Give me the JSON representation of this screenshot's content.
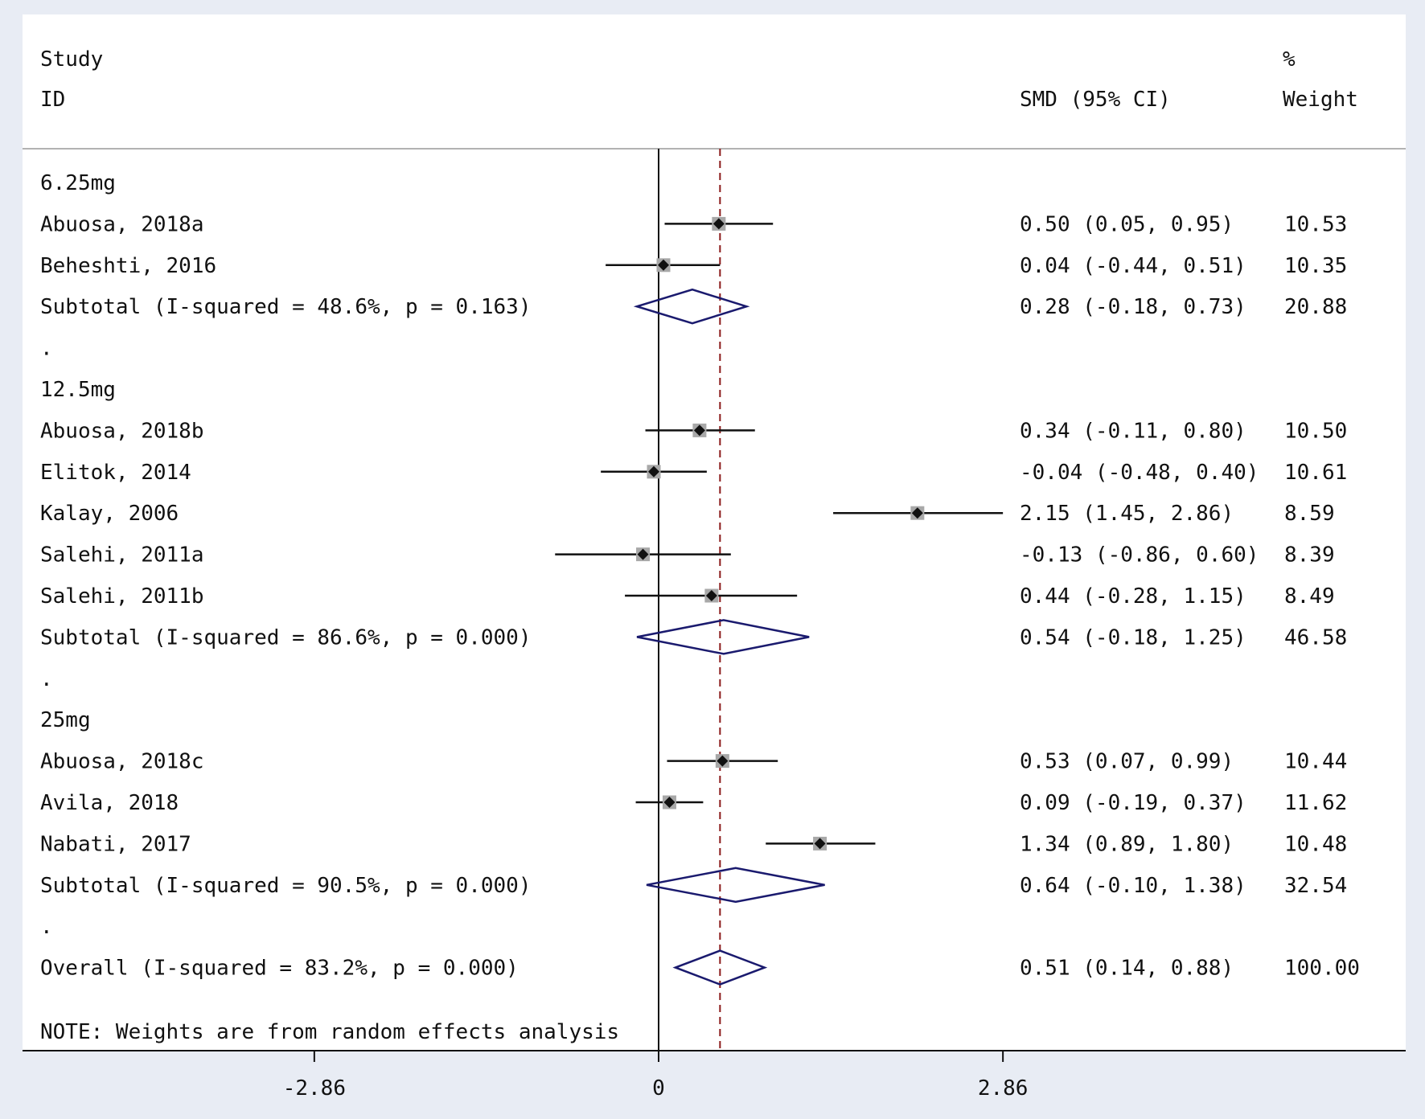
{
  "header": {
    "col_study_line1": "Study",
    "col_study_line2": "ID",
    "col_smd": "SMD (95% CI)",
    "col_weight_line1": "%",
    "col_weight_line2": "Weight"
  },
  "footnote": "NOTE: Weights are from random effects analysis",
  "colors": {
    "background": "#e8ecf4",
    "panel": "#ffffff",
    "diamond": "#1a1a6e",
    "box": "#a8a8a8",
    "reference_line": "#8b1a1a",
    "ink": "#111111"
  },
  "chart_data": {
    "type": "forest",
    "measure": "SMD",
    "x_ticks": [
      {
        "value": -2.86,
        "label": "-2.86"
      },
      {
        "value": 0,
        "label": "0"
      },
      {
        "value": 2.86,
        "label": "2.86"
      }
    ],
    "xlim": [
      -2.86,
      6.25
    ],
    "null_line": 0,
    "overall_line": 0.51,
    "rows": [
      {
        "kind": "group",
        "label": "6.25mg"
      },
      {
        "kind": "study",
        "label": "Abuosa, 2018a",
        "est": 0.5,
        "lo": 0.05,
        "hi": 0.95,
        "ci_text": "0.50 (0.05, 0.95)",
        "weight": "10.53"
      },
      {
        "kind": "study",
        "label": "Beheshti, 2016",
        "est": 0.04,
        "lo": -0.44,
        "hi": 0.51,
        "ci_text": "0.04 (-0.44, 0.51)",
        "weight": "10.35"
      },
      {
        "kind": "subtotal",
        "label": "Subtotal  (I-squared = 48.6%, p = 0.163)",
        "est": 0.28,
        "lo": -0.18,
        "hi": 0.73,
        "ci_text": "0.28 (-0.18, 0.73)",
        "weight": "20.88"
      },
      {
        "kind": "dot",
        "label": "."
      },
      {
        "kind": "group",
        "label": "12.5mg"
      },
      {
        "kind": "study",
        "label": "Abuosa, 2018b",
        "est": 0.34,
        "lo": -0.11,
        "hi": 0.8,
        "ci_text": "0.34 (-0.11, 0.80)",
        "weight": "10.50"
      },
      {
        "kind": "study",
        "label": "Elitok, 2014",
        "est": -0.04,
        "lo": -0.48,
        "hi": 0.4,
        "ci_text": "-0.04 (-0.48, 0.40)",
        "weight": "10.61"
      },
      {
        "kind": "study",
        "label": "Kalay, 2006",
        "est": 2.15,
        "lo": 1.45,
        "hi": 2.86,
        "ci_text": "2.15 (1.45, 2.86)",
        "weight": "8.59"
      },
      {
        "kind": "study",
        "label": "Salehi, 2011a",
        "est": -0.13,
        "lo": -0.86,
        "hi": 0.6,
        "ci_text": "-0.13 (-0.86, 0.60)",
        "weight": "8.39"
      },
      {
        "kind": "study",
        "label": "Salehi, 2011b",
        "est": 0.44,
        "lo": -0.28,
        "hi": 1.15,
        "ci_text": "0.44 (-0.28, 1.15)",
        "weight": "8.49"
      },
      {
        "kind": "subtotal",
        "label": "Subtotal  (I-squared = 86.6%, p = 0.000)",
        "est": 0.54,
        "lo": -0.18,
        "hi": 1.25,
        "ci_text": "0.54 (-0.18, 1.25)",
        "weight": "46.58"
      },
      {
        "kind": "dot",
        "label": "."
      },
      {
        "kind": "group",
        "label": "25mg"
      },
      {
        "kind": "study",
        "label": "Abuosa, 2018c",
        "est": 0.53,
        "lo": 0.07,
        "hi": 0.99,
        "ci_text": "0.53 (0.07, 0.99)",
        "weight": "10.44"
      },
      {
        "kind": "study",
        "label": "Avila, 2018",
        "est": 0.09,
        "lo": -0.19,
        "hi": 0.37,
        "ci_text": "0.09 (-0.19, 0.37)",
        "weight": "11.62"
      },
      {
        "kind": "study",
        "label": "Nabati, 2017",
        "est": 1.34,
        "lo": 0.89,
        "hi": 1.8,
        "ci_text": "1.34 (0.89, 1.80)",
        "weight": "10.48"
      },
      {
        "kind": "subtotal",
        "label": "Subtotal  (I-squared = 90.5%, p = 0.000)",
        "est": 0.64,
        "lo": -0.1,
        "hi": 1.38,
        "ci_text": "0.64 (-0.10, 1.38)",
        "weight": "32.54"
      },
      {
        "kind": "dot",
        "label": "."
      },
      {
        "kind": "overall",
        "label": "Overall  (I-squared = 83.2%, p = 0.000)",
        "est": 0.51,
        "lo": 0.14,
        "hi": 0.88,
        "ci_text": "0.51 (0.14, 0.88)",
        "weight": "100.00"
      }
    ]
  }
}
